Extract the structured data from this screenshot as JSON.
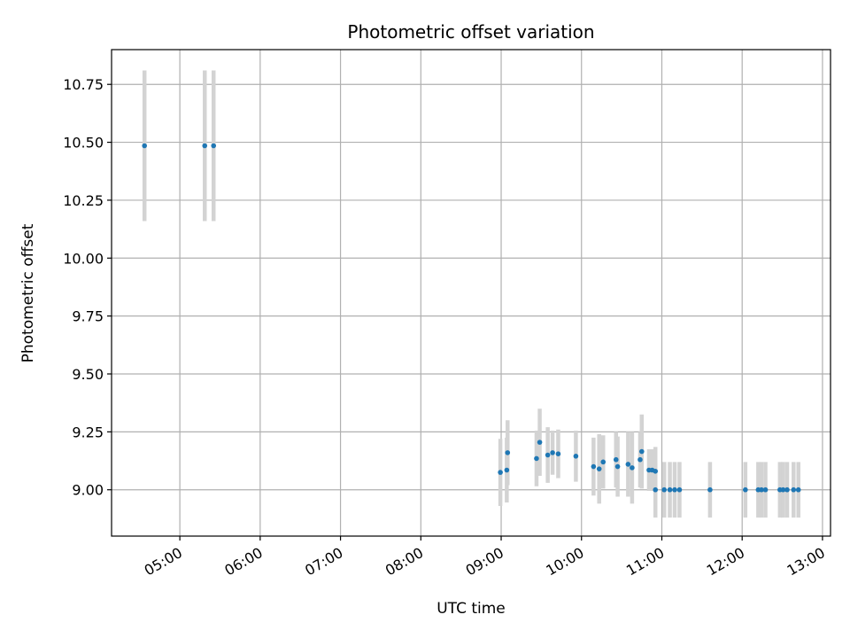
{
  "chart_data": {
    "type": "scatter",
    "title": "Photometric offset variation",
    "xlabel": "UTC time",
    "ylabel": "Photometric offset",
    "xlim": [
      4.15,
      13.1
    ],
    "ylim": [
      8.8,
      10.9
    ],
    "grid": true,
    "x_unit": "hours (UTC)",
    "x_ticks": [
      5,
      6,
      7,
      8,
      9,
      10,
      11,
      12,
      13
    ],
    "x_tick_labels": [
      "05:00",
      "06:00",
      "07:00",
      "08:00",
      "09:00",
      "10:00",
      "11:00",
      "12:00",
      "13:00"
    ],
    "y_ticks": [
      9.0,
      9.25,
      9.5,
      9.75,
      10.0,
      10.25,
      10.5,
      10.75
    ],
    "y_tick_labels": [
      "9.00",
      "9.25",
      "9.50",
      "9.75",
      "10.00",
      "10.25",
      "10.50",
      "10.75"
    ],
    "marker_color": "#1f77b4",
    "errorbar_color": "#d3d3d3",
    "points": [
      {
        "x": 4.56,
        "y": 10.485,
        "err": 0.325
      },
      {
        "x": 5.31,
        "y": 10.485,
        "err": 0.325
      },
      {
        "x": 5.42,
        "y": 10.485,
        "err": 0.325
      },
      {
        "x": 8.99,
        "y": 9.075,
        "err": 0.145
      },
      {
        "x": 9.07,
        "y": 9.085,
        "err": 0.14
      },
      {
        "x": 9.08,
        "y": 9.16,
        "err": 0.14
      },
      {
        "x": 9.44,
        "y": 9.135,
        "err": 0.12
      },
      {
        "x": 9.48,
        "y": 9.205,
        "err": 0.145
      },
      {
        "x": 9.58,
        "y": 9.15,
        "err": 0.12
      },
      {
        "x": 9.64,
        "y": 9.16,
        "err": 0.095
      },
      {
        "x": 9.71,
        "y": 9.155,
        "err": 0.105
      },
      {
        "x": 9.93,
        "y": 9.145,
        "err": 0.11
      },
      {
        "x": 10.15,
        "y": 9.1,
        "err": 0.125
      },
      {
        "x": 10.22,
        "y": 9.09,
        "err": 0.15
      },
      {
        "x": 10.27,
        "y": 9.12,
        "err": 0.115
      },
      {
        "x": 10.43,
        "y": 9.13,
        "err": 0.12
      },
      {
        "x": 10.45,
        "y": 9.1,
        "err": 0.13
      },
      {
        "x": 10.58,
        "y": 9.11,
        "err": 0.14
      },
      {
        "x": 10.63,
        "y": 9.095,
        "err": 0.155
      },
      {
        "x": 10.73,
        "y": 9.13,
        "err": 0.12
      },
      {
        "x": 10.75,
        "y": 9.165,
        "err": 0.16
      },
      {
        "x": 10.84,
        "y": 9.085,
        "err": 0.09
      },
      {
        "x": 10.88,
        "y": 9.085,
        "err": 0.09
      },
      {
        "x": 10.92,
        "y": 9.08,
        "err": 0.105
      },
      {
        "x": 10.92,
        "y": 9.0,
        "err": 0.12
      },
      {
        "x": 11.03,
        "y": 9.0,
        "err": 0.12
      },
      {
        "x": 11.1,
        "y": 9.0,
        "err": 0.12
      },
      {
        "x": 11.16,
        "y": 9.0,
        "err": 0.12
      },
      {
        "x": 11.22,
        "y": 9.0,
        "err": 0.12
      },
      {
        "x": 11.6,
        "y": 9.0,
        "err": 0.12
      },
      {
        "x": 12.04,
        "y": 9.0,
        "err": 0.12
      },
      {
        "x": 12.2,
        "y": 9.0,
        "err": 0.12
      },
      {
        "x": 12.24,
        "y": 9.0,
        "err": 0.12
      },
      {
        "x": 12.29,
        "y": 9.0,
        "err": 0.12
      },
      {
        "x": 12.47,
        "y": 9.0,
        "err": 0.12
      },
      {
        "x": 12.51,
        "y": 9.0,
        "err": 0.12
      },
      {
        "x": 12.56,
        "y": 9.0,
        "err": 0.12
      },
      {
        "x": 12.64,
        "y": 9.0,
        "err": 0.12
      },
      {
        "x": 12.7,
        "y": 9.0,
        "err": 0.12
      }
    ]
  }
}
